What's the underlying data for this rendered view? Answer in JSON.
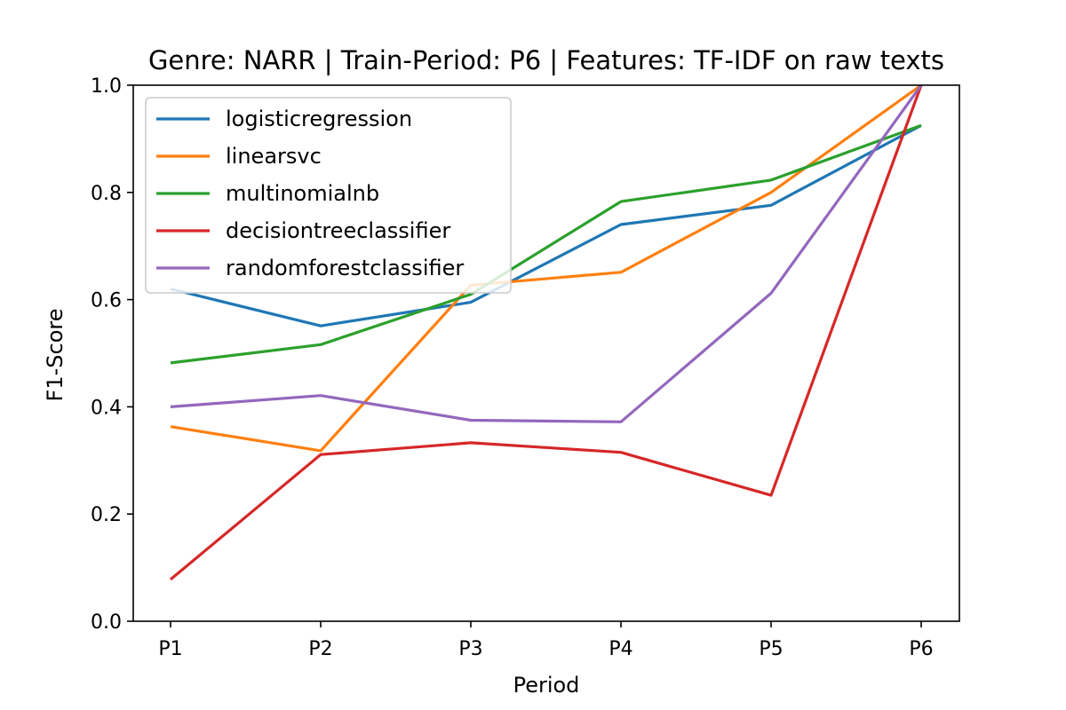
{
  "chart_data": {
    "type": "line",
    "title": "Genre: NARR | Train-Period: P6 | Features: TF-IDF on raw texts",
    "xlabel": "Period",
    "ylabel": "F1-Score",
    "categories": [
      "P1",
      "P2",
      "P3",
      "P4",
      "P5",
      "P6"
    ],
    "ylim": [
      0.0,
      1.0
    ],
    "yticks": [
      "0.0",
      "0.2",
      "0.4",
      "0.6",
      "0.8",
      "1.0"
    ],
    "grid": false,
    "legend_position": "upper-left",
    "series": [
      {
        "name": "logisticregression",
        "color": "#1f77b4",
        "values": [
          0.62,
          0.551,
          0.595,
          0.74,
          0.776,
          0.925
        ]
      },
      {
        "name": "linearsvc",
        "color": "#ff7f0e",
        "values": [
          0.363,
          0.318,
          0.627,
          0.651,
          0.8,
          1.0
        ]
      },
      {
        "name": "multinomialnb",
        "color": "#2ca02c",
        "values": [
          0.482,
          0.516,
          0.61,
          0.783,
          0.823,
          0.925
        ]
      },
      {
        "name": "decisiontreeclassifier",
        "color": "#d62728",
        "values": [
          0.078,
          0.311,
          0.333,
          0.315,
          0.235,
          1.0
        ]
      },
      {
        "name": "randomforestclassifier",
        "color": "#9467bd",
        "values": [
          0.4,
          0.421,
          0.375,
          0.372,
          0.612,
          1.0
        ]
      }
    ]
  }
}
